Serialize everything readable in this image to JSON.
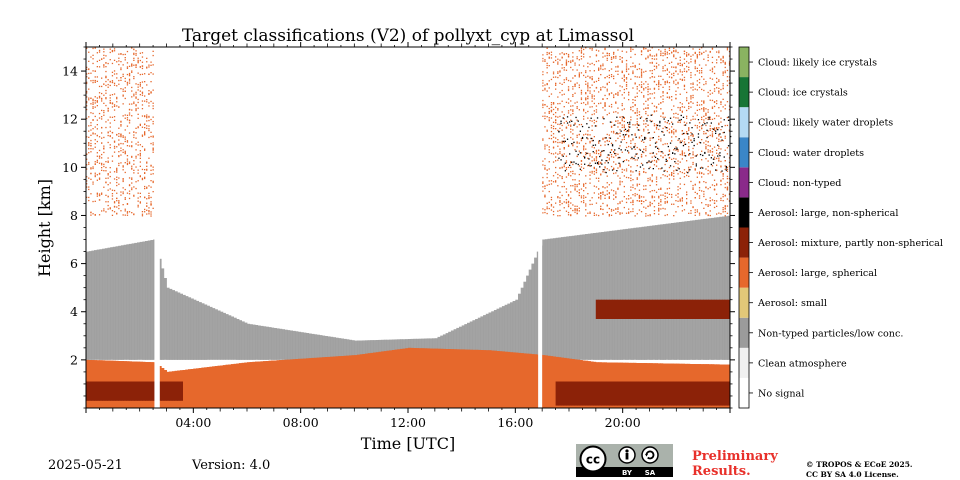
{
  "chart_data": {
    "type": "heatmap",
    "title": "Target classifications (V2) of pollyxt_cyp at Limassol",
    "xlabel": "Time [UTC]",
    "ylabel": "Height [km]",
    "xlim": [
      0,
      24
    ],
    "ylim": [
      0,
      15
    ],
    "xticks": [
      {
        "value": 4,
        "label": "04:00"
      },
      {
        "value": 8,
        "label": "08:00"
      },
      {
        "value": 12,
        "label": "12:00"
      },
      {
        "value": 16,
        "label": "16:00"
      },
      {
        "value": 20,
        "label": "20:00"
      }
    ],
    "yticks": [
      {
        "value": 2,
        "label": "2"
      },
      {
        "value": 4,
        "label": "4"
      },
      {
        "value": 6,
        "label": "6"
      },
      {
        "value": 8,
        "label": "8"
      },
      {
        "value": 10,
        "label": "10"
      },
      {
        "value": 12,
        "label": "12"
      },
      {
        "value": 14,
        "label": "14"
      }
    ],
    "legend_position": "right colorbar",
    "classes": [
      {
        "label": "No signal",
        "color": "#ffffff"
      },
      {
        "label": "Clean atmosphere",
        "color": "#f0f0f0"
      },
      {
        "label": "Non-typed particles/low conc.",
        "color": "#9b9b9b"
      },
      {
        "label": "Aerosol: small",
        "color": "#e2c878"
      },
      {
        "label": "Aerosol: large, spherical",
        "color": "#e6682c"
      },
      {
        "label": "Aerosol: mixture, partly non-spherical",
        "color": "#8c2208"
      },
      {
        "label": "Aerosol: large, non-spherical",
        "color": "#000000"
      },
      {
        "label": "Cloud: non-typed",
        "color": "#8a2a8a"
      },
      {
        "label": "Cloud: water droplets",
        "color": "#3a86c8"
      },
      {
        "label": "Cloud: likely water droplets",
        "color": "#b4daf4"
      },
      {
        "label": "Cloud: ice crystals",
        "color": "#177535"
      },
      {
        "label": "Cloud: likely ice crystals",
        "color": "#8ab361"
      }
    ],
    "no_data_gaps_utc": [
      [
        2.55,
        2.75
      ],
      [
        16.85,
        17.0
      ]
    ],
    "layers": [
      {
        "class": "Aerosol: large, spherical",
        "t_start": 0,
        "t_end": 24,
        "bottom_km_at": [
          [
            0,
            0
          ],
          [
            24,
            0
          ]
        ],
        "top_km_at": [
          [
            0,
            2.0
          ],
          [
            2.5,
            1.9
          ],
          [
            3,
            1.5
          ],
          [
            6,
            1.9
          ],
          [
            10,
            2.2
          ],
          [
            12,
            2.5
          ],
          [
            15,
            2.4
          ],
          [
            17,
            2.2
          ],
          [
            19,
            1.9
          ],
          [
            24,
            1.8
          ]
        ]
      },
      {
        "class": "Aerosol: mixture, partly non-spherical",
        "t_start": 0,
        "t_end": 3.6,
        "bottom_km_at": [
          [
            0,
            0.3
          ]
        ],
        "top_km_at": [
          [
            0,
            1.1
          ]
        ]
      },
      {
        "class": "Aerosol: mixture, partly non-spherical",
        "t_start": 17.5,
        "t_end": 24,
        "bottom_km_at": [
          [
            17.5,
            0.1
          ]
        ],
        "top_km_at": [
          [
            17.5,
            1.1
          ]
        ]
      },
      {
        "class": "Aerosol: mixture, partly non-spherical",
        "t_start": 19,
        "t_end": 24,
        "bottom_km_at": [
          [
            19,
            3.7
          ]
        ],
        "top_km_at": [
          [
            19,
            4.5
          ]
        ]
      },
      {
        "class": "Non-typed particles/low conc.",
        "t_start": 0,
        "t_end": 24,
        "bottom_km_at": [
          [
            0,
            2.0
          ]
        ],
        "top_km_at": [
          [
            0,
            6.5
          ],
          [
            2.5,
            7
          ],
          [
            3,
            5
          ],
          [
            6,
            3.5
          ],
          [
            10,
            2.8
          ],
          [
            13,
            2.9
          ],
          [
            16,
            4.5
          ],
          [
            17,
            7
          ],
          [
            24,
            8
          ]
        ]
      },
      {
        "class": "Aerosol: large, spherical",
        "t_start": 0,
        "t_end": 2.55,
        "bottom_km_at": [
          [
            0,
            8
          ]
        ],
        "top_km_at": [
          [
            0,
            15
          ]
        ],
        "note": "scattered noise"
      },
      {
        "class": "Aerosol: large, spherical",
        "t_start": 17.0,
        "t_end": 24,
        "bottom_km_at": [
          [
            17,
            8
          ]
        ],
        "top_km_at": [
          [
            17,
            15
          ]
        ],
        "note": "scattered noise"
      },
      {
        "class": "Aerosol: large, non-spherical",
        "t_start": 17.6,
        "t_end": 24,
        "bottom_km_at": [
          [
            17.6,
            9.8
          ]
        ],
        "top_km_at": [
          [
            17.6,
            12.2
          ]
        ],
        "note": "thin cirrus-like patches"
      }
    ]
  },
  "footer": {
    "date": "2025-05-21",
    "version": "Version: 4.0",
    "license_badge": {
      "cc": "cc",
      "by": "BY",
      "sa": "SA"
    },
    "preliminary": [
      "Preliminary",
      "Results."
    ],
    "copyright": [
      "© TROPOS & ECoE 2025.",
      "CC BY SA 4.0 License."
    ]
  }
}
